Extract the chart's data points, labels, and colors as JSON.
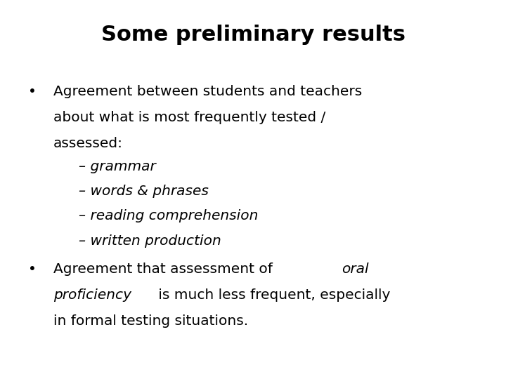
{
  "title": "Some preliminary results",
  "background_color": "#ffffff",
  "text_color": "#000000",
  "title_fontsize": 22,
  "body_fontsize": 14.5,
  "sub_fontsize": 14.5,
  "bullet1_line1": "Agreement between students and teachers",
  "bullet1_line2": "about what is most frequently tested /",
  "bullet1_line3": "assessed:",
  "sub_items": [
    "– grammar",
    "– words & phrases",
    "– reading comprehension",
    "– written production"
  ],
  "bullet2_line1_normal": "Agreement that assessment of ",
  "bullet2_line1_italic": "oral",
  "bullet2_line2_italic": "proficiency",
  "bullet2_line2_normal": " is much less frequent, especially",
  "bullet2_line3": "in formal testing situations.",
  "bullet_symbol": "•"
}
